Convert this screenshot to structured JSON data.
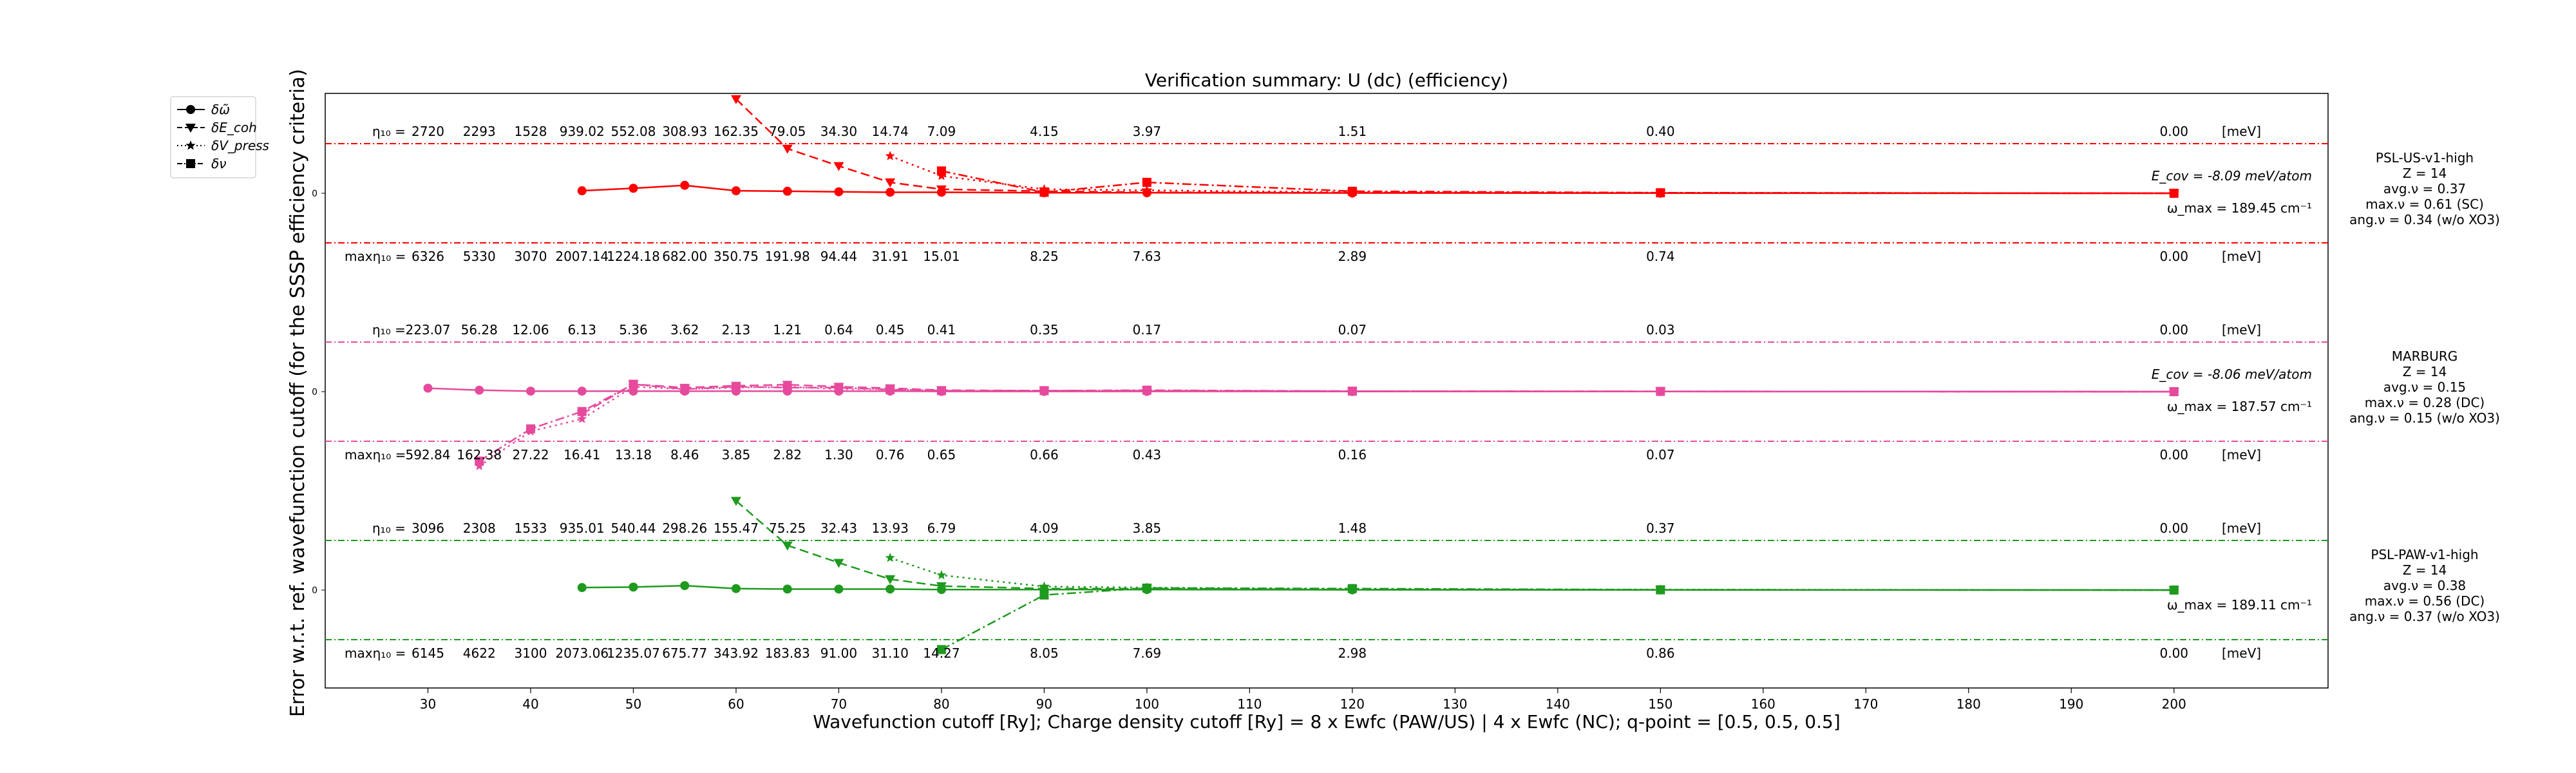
{
  "chart_data": {
    "type": "line",
    "title": "Verification summary: U (dc) (efficiency)",
    "xlabel": "Wavefunction cutoff [Ry]; Charge density cutoff [Ry] = 8 x Ewfc (PAW/US) | 4 x Ewfc (NC); q-point = [0.5, 0.5, 0.5]",
    "ylabel": "Error w.r.t. ref. wavefunction cutoff (for the SSSP efficiency criteria)",
    "xlim": [
      20,
      215
    ],
    "xticks": [
      30,
      40,
      50,
      60,
      70,
      80,
      90,
      100,
      110,
      120,
      130,
      140,
      150,
      160,
      170,
      180,
      190,
      200
    ],
    "legend": {
      "placement": "upper-left-outside",
      "entries": [
        "δω̃",
        "δE_coh",
        "δV_press",
        "δν"
      ]
    },
    "ytick_label": "0",
    "unit_label": "[meV]",
    "eta_prefix": "η₁₀ =",
    "max_eta_prefix": "maxη₁₀ =",
    "panels": [
      {
        "name": "PSL-US-v1-high",
        "color": "#ff0000",
        "x": [
          30,
          35,
          40,
          45,
          50,
          55,
          60,
          65,
          70,
          75,
          80,
          90,
          100,
          120,
          150,
          200
        ],
        "eta": [
          "2720",
          "2293",
          "1528",
          "939.02",
          "552.08",
          "308.93",
          "162.35",
          "79.05",
          "34.30",
          "14.74",
          "7.09",
          "4.15",
          "3.97",
          "1.51",
          "0.40",
          "0.00"
        ],
        "max_eta": [
          "6326",
          "5330",
          "3070",
          "2007.14",
          "1224.18",
          "682.00",
          "350.75",
          "191.98",
          "94.44",
          "31.91",
          "15.01",
          "8.25",
          "7.63",
          "2.89",
          "0.74",
          "0.00"
        ],
        "info": [
          "PSL-US-v1-high",
          "Z = 14",
          "avg.ν = 0.37",
          "max.ν = 0.61 (SC)",
          "ang.ν = 0.34 (w/o XO3)"
        ],
        "ecov": "E_cov = -8.09 meV/atom",
        "wmax": "ω_max = 189.45 cm⁻¹",
        "series": {
          "omega": {
            "x": [
              45,
              50,
              55,
              60,
              65,
              70,
              75,
              80,
              90,
              100,
              120,
              150,
              200
            ],
            "y": [
              0.05,
              0.1,
              0.16,
              0.05,
              0.04,
              0.03,
              0.02,
              0.02,
              0.01,
              0.01,
              0.005,
              0.003,
              0
            ]
          },
          "ecoh": {
            "x": [
              60,
              65,
              70,
              75,
              80,
              90,
              100,
              120,
              150,
              200
            ],
            "y": [
              1.9,
              0.9,
              0.55,
              0.22,
              0.08,
              0.04,
              0.02,
              0.01,
              0.004,
              0
            ]
          },
          "vpress": {
            "x": [
              75,
              80,
              90,
              100,
              120,
              150,
              200
            ],
            "y": [
              0.75,
              0.35,
              0.08,
              0.06,
              0.02,
              0.01,
              0
            ]
          },
          "nu": {
            "x": [
              80,
              90,
              100,
              120,
              150,
              200
            ],
            "y": [
              0.45,
              0.02,
              0.22,
              0.04,
              0.01,
              0
            ]
          }
        }
      },
      {
        "name": "MARBURG",
        "color": "#e64a9c",
        "x": [
          30,
          35,
          40,
          45,
          50,
          55,
          60,
          65,
          70,
          75,
          80,
          90,
          100,
          120,
          150,
          200
        ],
        "eta": [
          "223.07",
          "56.28",
          "12.06",
          "6.13",
          "5.36",
          "3.62",
          "2.13",
          "1.21",
          "0.64",
          "0.45",
          "0.41",
          "0.35",
          "0.17",
          "0.07",
          "0.03",
          "0.00"
        ],
        "max_eta": [
          "592.84",
          "162.38",
          "27.22",
          "16.41",
          "13.18",
          "8.46",
          "3.85",
          "2.82",
          "1.30",
          "0.76",
          "0.65",
          "0.66",
          "0.43",
          "0.16",
          "0.07",
          "0.00"
        ],
        "info": [
          "MARBURG",
          "Z = 14",
          "avg.ν = 0.15",
          "max.ν = 0.28 (DC)",
          "ang.ν = 0.15 (w/o XO3)"
        ],
        "ecov": "E_cov = -8.06 meV/atom",
        "wmax": "ω_max = 187.57 cm⁻¹",
        "series": {
          "omega": {
            "x": [
              30,
              35,
              40,
              45,
              50,
              55,
              60,
              65,
              70,
              75,
              80,
              90,
              100,
              120,
              150,
              200
            ],
            "y": [
              0.07,
              0.03,
              0.01,
              0.01,
              0.01,
              0.01,
              0.01,
              0.01,
              0.01,
              0.01,
              0.005,
              0.005,
              0.005,
              0.003,
              0.002,
              0
            ]
          },
          "ecoh": {
            "x": [
              45,
              50,
              55,
              60,
              65,
              70,
              75,
              80,
              90,
              100,
              120,
              150,
              200
            ],
            "y": [
              -0.45,
              0.15,
              0.08,
              0.12,
              0.14,
              0.1,
              0.07,
              0.03,
              0.02,
              0.02,
              0.01,
              0.005,
              0
            ]
          },
          "vpress": {
            "x": [
              35,
              40,
              45,
              50,
              55,
              60,
              65,
              70,
              75,
              80,
              90,
              100,
              120,
              150,
              200
            ],
            "y": [
              -1.5,
              -0.8,
              -0.55,
              0.1,
              0.05,
              0.08,
              0.1,
              0.05,
              0.05,
              0.02,
              0.02,
              0.02,
              0.01,
              0.005,
              0
            ]
          },
          "nu": {
            "x": [
              35,
              40,
              45,
              50,
              55,
              60,
              65,
              70,
              75,
              80,
              90,
              100,
              120,
              150,
              200
            ],
            "y": [
              -1.4,
              -0.75,
              -0.4,
              0.15,
              0.05,
              0.1,
              0.08,
              0.08,
              0.04,
              0.02,
              0.02,
              0.03,
              0.01,
              0.005,
              0
            ]
          }
        }
      },
      {
        "name": "PSL-PAW-v1-high",
        "color": "#1e9a1e",
        "x": [
          30,
          35,
          40,
          45,
          50,
          55,
          60,
          65,
          70,
          75,
          80,
          90,
          100,
          120,
          150,
          200
        ],
        "eta": [
          "3096",
          "2308",
          "1533",
          "935.01",
          "540.44",
          "298.26",
          "155.47",
          "75.25",
          "32.43",
          "13.93",
          "6.79",
          "4.09",
          "3.85",
          "1.48",
          "0.37",
          "0.00"
        ],
        "max_eta": [
          "6145",
          "4622",
          "3100",
          "2073.06",
          "1235.07",
          "675.77",
          "343.92",
          "183.83",
          "91.00",
          "31.10",
          "14.27",
          "8.05",
          "7.69",
          "2.98",
          "0.86",
          "0.00"
        ],
        "info": [
          "PSL-PAW-v1-high",
          "Z = 14",
          "avg.ν = 0.38",
          "max.ν = 0.56 (DC)",
          "ang.ν = 0.37 (w/o XO3)"
        ],
        "ecov": "",
        "wmax": "ω_max = 189.11 cm⁻¹",
        "series": {
          "omega": {
            "x": [
              45,
              50,
              55,
              60,
              65,
              70,
              75,
              80,
              90,
              100,
              120,
              150,
              200
            ],
            "y": [
              0.05,
              0.06,
              0.09,
              0.03,
              0.02,
              0.02,
              0.02,
              0.01,
              0.01,
              0.01,
              0.005,
              0.003,
              0
            ]
          },
          "ecoh": {
            "x": [
              60,
              65,
              70,
              75,
              80,
              90,
              100,
              120,
              150,
              200
            ],
            "y": [
              1.8,
              0.9,
              0.55,
              0.22,
              0.08,
              0.03,
              0.03,
              0.01,
              0.005,
              0
            ]
          },
          "vpress": {
            "x": [
              75,
              80,
              90,
              100,
              120,
              150,
              200
            ],
            "y": [
              0.65,
              0.3,
              0.07,
              0.05,
              0.02,
              0.01,
              0
            ]
          },
          "nu": {
            "x": [
              80,
              90,
              100,
              120,
              150,
              200
            ],
            "y": [
              -1.2,
              -0.1,
              0.04,
              0.03,
              0.005,
              0
            ]
          }
        }
      }
    ]
  }
}
